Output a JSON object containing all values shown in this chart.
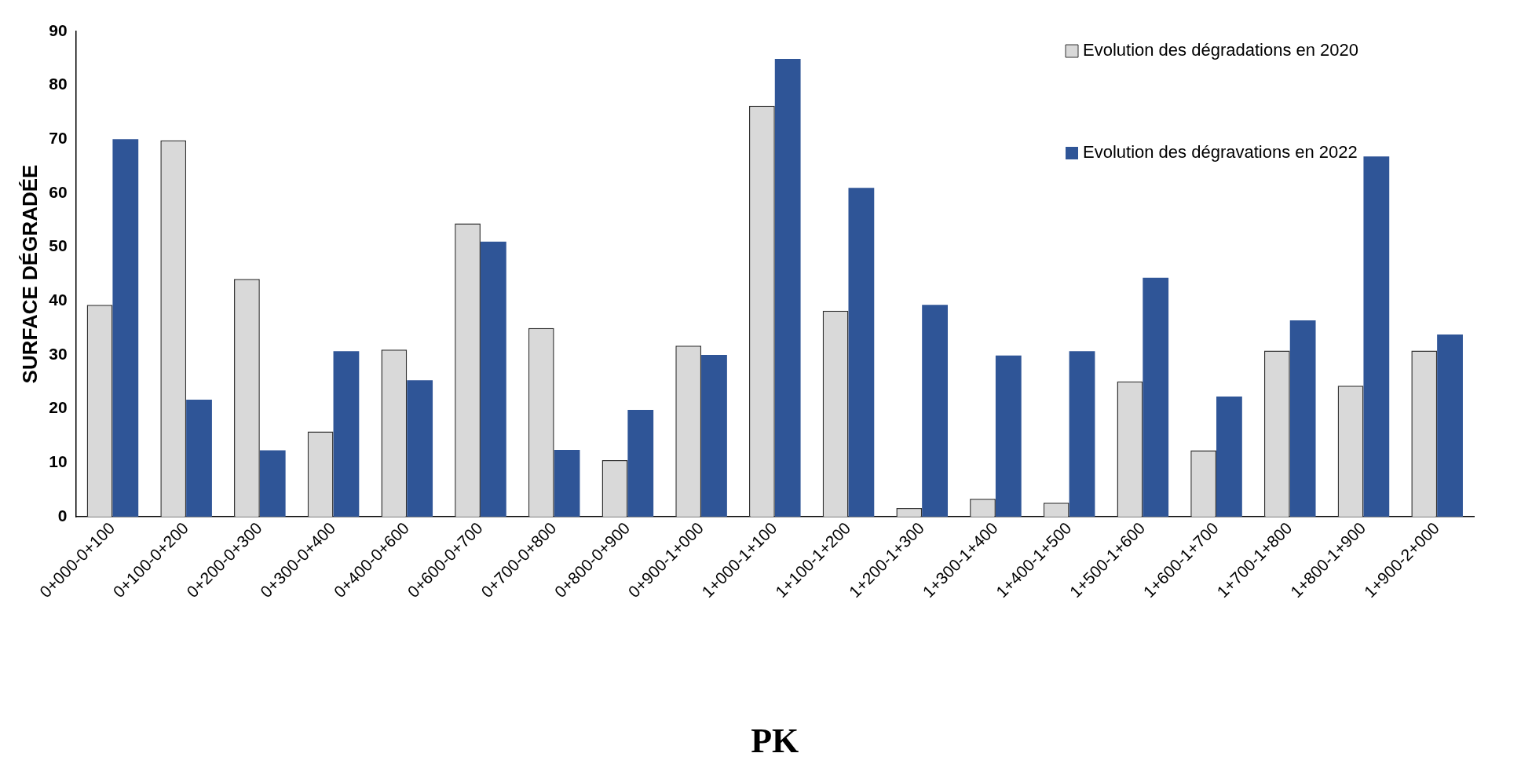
{
  "chart_data": {
    "type": "bar",
    "xlabel": "PK",
    "ylabel": "SURFACE DÉGRADÉE",
    "categories": [
      "0+000-0+100",
      "0+100-0+200",
      "0+200-0+300",
      "0+300-0+400",
      "0+400-0+600",
      "0+600-0+700",
      "0+700-0+800",
      "0+800-0+900",
      "0+900-1+000",
      "1+000-1+100",
      "1+100-1+200",
      "1+200-1+300",
      "1+300-1+400",
      "1+400-1+500",
      "1+500-1+600",
      "1+600-1+700",
      "1+700-1+800",
      "1+800-1+900",
      "1+900-2+000"
    ],
    "series": [
      {
        "name": "Evolution des dégradations en 2020",
        "color": "#d9d9d9",
        "values": [
          39.3,
          69.8,
          44.1,
          15.8,
          31,
          54.4,
          35,
          10.5,
          31.7,
          76.2,
          38.2,
          1.6,
          3.3,
          2.6,
          25.1,
          12.3,
          30.8,
          24.3,
          30.8
        ]
      },
      {
        "name": "Evolution des dégravations en 2022",
        "color": "#2f5597",
        "values": [
          70,
          21.7,
          12.3,
          30.7,
          25.3,
          51,
          12.4,
          19.8,
          30,
          84.9,
          61,
          39.3,
          29.9,
          30.7,
          44.3,
          22.3,
          36.4,
          66.8,
          33.8
        ]
      }
    ],
    "ylim": [
      0,
      90
    ],
    "yticks": [
      0,
      10,
      20,
      30,
      40,
      50,
      60,
      70,
      80,
      90
    ],
    "grid": false,
    "legend": "top right"
  }
}
